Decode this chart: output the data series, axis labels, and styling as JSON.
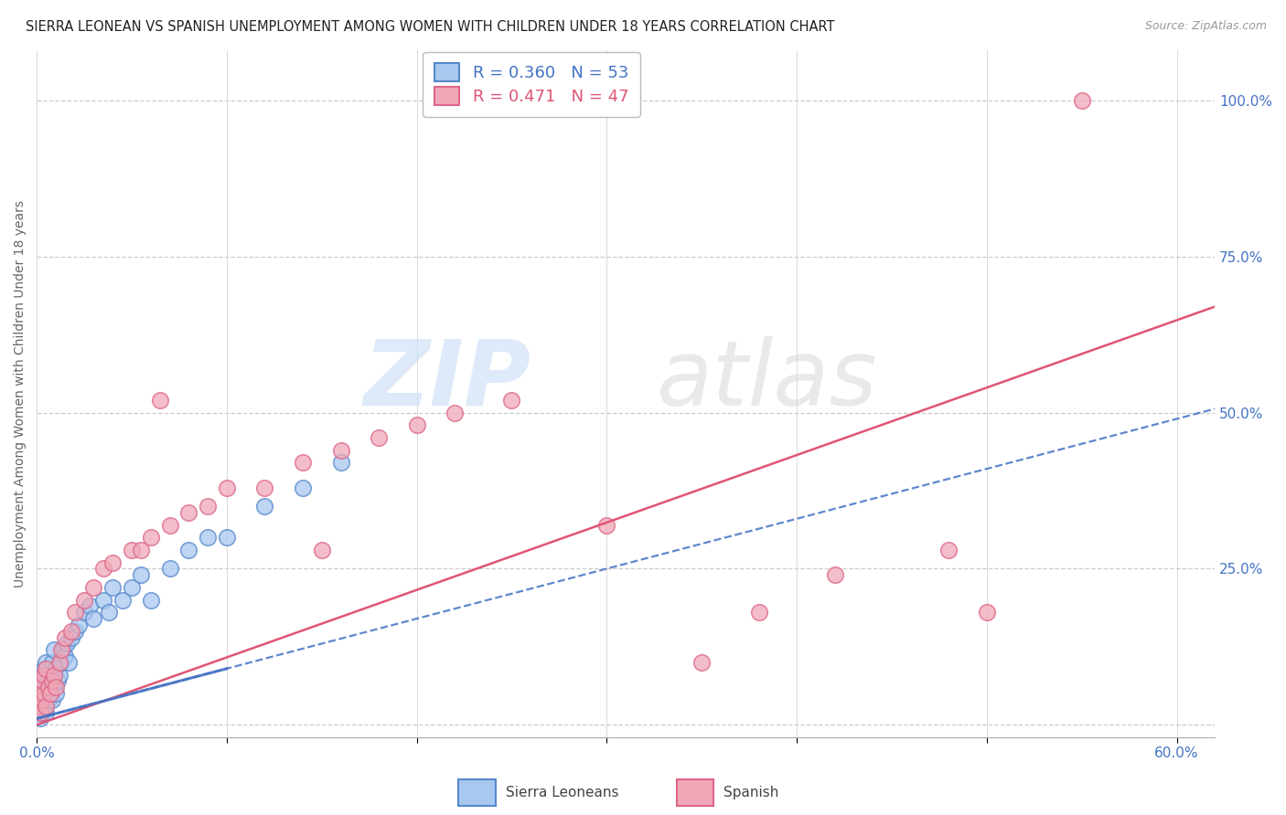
{
  "title": "SIERRA LEONEAN VS SPANISH UNEMPLOYMENT AMONG WOMEN WITH CHILDREN UNDER 18 YEARS CORRELATION CHART",
  "source": "Source: ZipAtlas.com",
  "ylabel": "Unemployment Among Women with Children Under 18 years",
  "legend_r1": "R = 0.360",
  "legend_n1": "N = 53",
  "legend_r2": "R = 0.471",
  "legend_n2": "N = 47",
  "sierra_color": "#a8c8f0",
  "spanish_color": "#f0a8b8",
  "sierra_edge_color": "#5588cc",
  "spanish_edge_color": "#dd6688",
  "sierra_line_color": "#4472c4",
  "spanish_line_color": "#e05575",
  "background_color": "#ffffff",
  "grid_color": "#cccccc",
  "title_fontsize": 10.5,
  "axis_label_fontsize": 10,
  "tick_fontsize": 11,
  "sierra_x": [
    0.001,
    0.001,
    0.001,
    0.002,
    0.002,
    0.002,
    0.002,
    0.003,
    0.003,
    0.003,
    0.004,
    0.004,
    0.004,
    0.005,
    0.005,
    0.005,
    0.006,
    0.006,
    0.007,
    0.007,
    0.008,
    0.008,
    0.009,
    0.009,
    0.01,
    0.01,
    0.011,
    0.012,
    0.013,
    0.014,
    0.015,
    0.016,
    0.017,
    0.018,
    0.02,
    0.022,
    0.025,
    0.028,
    0.03,
    0.035,
    0.038,
    0.04,
    0.045,
    0.05,
    0.055,
    0.06,
    0.07,
    0.08,
    0.09,
    0.1,
    0.12,
    0.14,
    0.16
  ],
  "sierra_y": [
    0.02,
    0.04,
    0.06,
    0.01,
    0.03,
    0.05,
    0.08,
    0.02,
    0.04,
    0.07,
    0.03,
    0.05,
    0.09,
    0.02,
    0.06,
    0.1,
    0.04,
    0.07,
    0.05,
    0.08,
    0.04,
    0.1,
    0.06,
    0.12,
    0.05,
    0.09,
    0.07,
    0.08,
    0.1,
    0.12,
    0.11,
    0.13,
    0.1,
    0.14,
    0.15,
    0.16,
    0.18,
    0.19,
    0.17,
    0.2,
    0.18,
    0.22,
    0.2,
    0.22,
    0.24,
    0.2,
    0.25,
    0.28,
    0.3,
    0.3,
    0.35,
    0.38,
    0.42
  ],
  "spanish_x": [
    0.001,
    0.001,
    0.002,
    0.002,
    0.003,
    0.003,
    0.004,
    0.004,
    0.005,
    0.005,
    0.006,
    0.007,
    0.008,
    0.009,
    0.01,
    0.012,
    0.013,
    0.015,
    0.018,
    0.02,
    0.025,
    0.03,
    0.035,
    0.04,
    0.05,
    0.055,
    0.06,
    0.065,
    0.07,
    0.08,
    0.09,
    0.1,
    0.12,
    0.14,
    0.15,
    0.16,
    0.18,
    0.2,
    0.22,
    0.25,
    0.3,
    0.35,
    0.38,
    0.42,
    0.48,
    0.5,
    0.55
  ],
  "spanish_y": [
    0.03,
    0.05,
    0.02,
    0.06,
    0.04,
    0.07,
    0.05,
    0.08,
    0.03,
    0.09,
    0.06,
    0.05,
    0.07,
    0.08,
    0.06,
    0.1,
    0.12,
    0.14,
    0.15,
    0.18,
    0.2,
    0.22,
    0.25,
    0.26,
    0.28,
    0.28,
    0.3,
    0.52,
    0.32,
    0.34,
    0.35,
    0.38,
    0.38,
    0.42,
    0.28,
    0.44,
    0.46,
    0.48,
    0.5,
    0.52,
    0.32,
    0.1,
    0.18,
    0.24,
    0.28,
    0.18,
    1.0
  ],
  "sierra_trend": [
    0.0,
    0.5
  ],
  "spanish_trend": [
    0.0,
    0.65
  ],
  "xlim": [
    0.0,
    0.62
  ],
  "ylim": [
    -0.02,
    1.08
  ],
  "xtick_positions": [
    0.0,
    0.1,
    0.2,
    0.3,
    0.4,
    0.5,
    0.6
  ],
  "xtick_labels": [
    "0.0%",
    "",
    "",
    "",
    "",
    "",
    "60.0%"
  ],
  "ytick_positions": [
    0.0,
    0.25,
    0.5,
    0.75,
    1.0
  ],
  "ytick_labels": [
    "",
    "25.0%",
    "50.0%",
    "75.0%",
    "100.0%"
  ]
}
